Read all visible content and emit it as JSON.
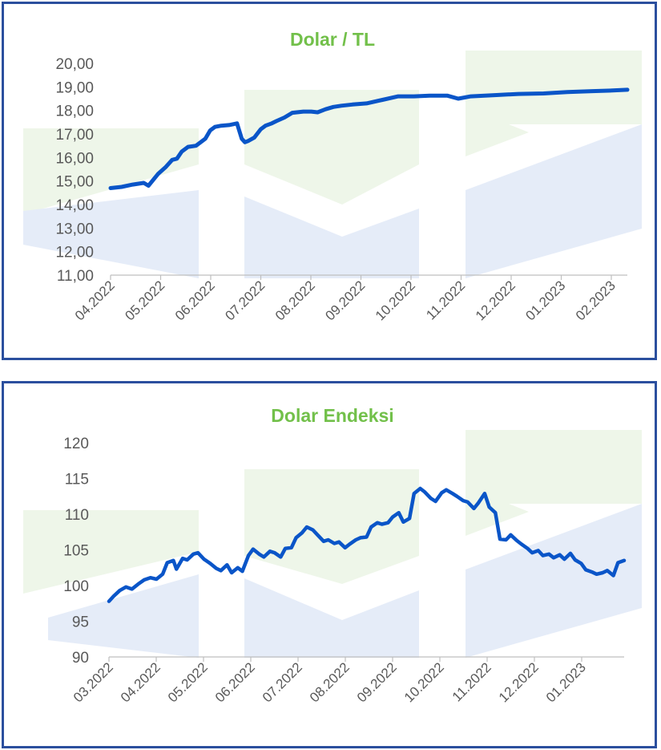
{
  "colors": {
    "frame": "#2b4f9e",
    "title": "#72c04a",
    "series": "#0a55c8",
    "watermark_green": "#eef6e9",
    "watermark_blue": "#e5ecf8"
  },
  "chart_data": [
    {
      "type": "line",
      "title": "Dolar / TL",
      "xlabel": "",
      "ylabel": "",
      "x_tick_labels": [
        "04.2022",
        "05.2022",
        "06.2022",
        "07.2022",
        "08.2022",
        "09.2022",
        "10.2022",
        "11.2022",
        "12.2022",
        "01.2023",
        "02.2023"
      ],
      "y_tick_labels": [
        "11,00",
        "12,00",
        "13,00",
        "14,00",
        "15,00",
        "16,00",
        "17,00",
        "18,00",
        "19,00",
        "20,00"
      ],
      "ylim": [
        11,
        20
      ],
      "xlim": [
        "2022-04-01",
        "2023-02-22"
      ],
      "grid": false,
      "legend": "none",
      "series": [
        {
          "x": [
            "2022-04-01",
            "2022-04-08",
            "2022-04-15",
            "2022-04-22",
            "2022-04-25",
            "2022-05-01",
            "2022-05-06",
            "2022-05-10",
            "2022-05-13",
            "2022-05-16",
            "2022-05-20",
            "2022-05-25",
            "2022-05-31",
            "2022-06-03",
            "2022-06-06",
            "2022-06-10",
            "2022-06-15",
            "2022-06-20",
            "2022-06-23",
            "2022-06-25",
            "2022-06-27",
            "2022-07-01",
            "2022-07-05",
            "2022-07-08",
            "2022-07-12",
            "2022-07-15",
            "2022-07-20",
            "2022-07-25",
            "2022-08-01",
            "2022-08-06",
            "2022-08-10",
            "2022-08-15",
            "2022-08-20",
            "2022-08-25",
            "2022-09-01",
            "2022-09-10",
            "2022-09-20",
            "2022-09-30",
            "2022-10-10",
            "2022-10-20",
            "2022-10-31",
            "2022-11-07",
            "2022-11-15",
            "2022-11-30",
            "2022-12-15",
            "2022-12-31",
            "2023-01-15",
            "2023-01-31",
            "2023-02-10",
            "2023-02-22"
          ],
          "y": [
            14.7,
            14.75,
            14.85,
            14.92,
            14.8,
            15.3,
            15.6,
            15.9,
            15.95,
            16.25,
            16.45,
            16.5,
            16.8,
            17.15,
            17.3,
            17.35,
            17.38,
            17.45,
            16.8,
            16.65,
            16.7,
            16.85,
            17.2,
            17.35,
            17.45,
            17.55,
            17.7,
            17.9,
            17.95,
            17.95,
            17.92,
            18.05,
            18.15,
            18.2,
            18.25,
            18.3,
            18.45,
            18.6,
            18.6,
            18.63,
            18.63,
            18.5,
            18.6,
            18.65,
            18.7,
            18.72,
            18.78,
            18.82,
            18.84,
            18.88
          ]
        }
      ]
    },
    {
      "type": "line",
      "title": "Dolar Endeksi",
      "xlabel": "",
      "ylabel": "",
      "x_tick_labels": [
        "03.2022",
        "04.2022",
        "05.2022",
        "06.2022",
        "07.2022",
        "08.2022",
        "09.2022",
        "10.2022",
        "11.2022",
        "12.2022",
        "01.2023"
      ],
      "y_tick_labels": [
        "90",
        "95",
        "100",
        "105",
        "110",
        "115",
        "120"
      ],
      "ylim": [
        90,
        120
      ],
      "xlim": [
        "2022-03-01",
        "2023-01-31"
      ],
      "grid": false,
      "legend": "none",
      "series": [
        {
          "x": [
            "2022-03-01",
            "2022-03-04",
            "2022-03-08",
            "2022-03-12",
            "2022-03-16",
            "2022-03-20",
            "2022-03-24",
            "2022-03-28",
            "2022-04-01",
            "2022-04-05",
            "2022-04-08",
            "2022-04-12",
            "2022-04-14",
            "2022-04-18",
            "2022-04-21",
            "2022-04-25",
            "2022-04-28",
            "2022-05-02",
            "2022-05-06",
            "2022-05-10",
            "2022-05-13",
            "2022-05-17",
            "2022-05-20",
            "2022-05-24",
            "2022-05-27",
            "2022-05-31",
            "2022-06-03",
            "2022-06-07",
            "2022-06-10",
            "2022-06-14",
            "2022-06-17",
            "2022-06-21",
            "2022-06-24",
            "2022-06-28",
            "2022-07-01",
            "2022-07-05",
            "2022-07-08",
            "2022-07-12",
            "2022-07-15",
            "2022-07-19",
            "2022-07-22",
            "2022-07-26",
            "2022-07-29",
            "2022-08-02",
            "2022-08-05",
            "2022-08-09",
            "2022-08-12",
            "2022-08-16",
            "2022-08-19",
            "2022-08-23",
            "2022-08-26",
            "2022-08-30",
            "2022-09-02",
            "2022-09-06",
            "2022-09-09",
            "2022-09-13",
            "2022-09-16",
            "2022-09-20",
            "2022-09-23",
            "2022-09-27",
            "2022-09-30",
            "2022-10-04",
            "2022-10-07",
            "2022-10-11",
            "2022-10-14",
            "2022-10-18",
            "2022-10-21",
            "2022-10-25",
            "2022-10-28",
            "2022-11-01",
            "2022-11-04",
            "2022-11-08",
            "2022-11-11",
            "2022-11-15",
            "2022-11-18",
            "2022-11-22",
            "2022-11-25",
            "2022-11-29",
            "2022-12-02",
            "2022-12-06",
            "2022-12-09",
            "2022-12-13",
            "2022-12-16",
            "2022-12-20",
            "2022-12-23",
            "2022-12-27",
            "2022-12-30",
            "2023-01-03",
            "2023-01-06",
            "2023-01-10",
            "2023-01-13",
            "2023-01-17",
            "2023-01-20",
            "2023-01-24",
            "2023-01-27",
            "2023-01-31"
          ],
          "y": [
            97.8,
            98.5,
            99.3,
            99.8,
            99.5,
            100.2,
            100.8,
            101.1,
            100.9,
            101.6,
            103.2,
            103.5,
            102.3,
            103.8,
            103.6,
            104.4,
            104.6,
            103.7,
            103.1,
            102.4,
            102.1,
            102.9,
            101.8,
            102.5,
            102.0,
            104.2,
            105.1,
            104.4,
            104.0,
            104.8,
            104.6,
            104.0,
            105.2,
            105.3,
            106.7,
            107.4,
            108.2,
            107.8,
            107.1,
            106.2,
            106.4,
            105.9,
            106.1,
            105.3,
            105.8,
            106.4,
            106.7,
            106.8,
            108.2,
            108.8,
            108.6,
            108.8,
            109.6,
            110.2,
            108.9,
            109.4,
            112.9,
            113.6,
            113.1,
            112.2,
            111.8,
            113.0,
            113.4,
            112.9,
            112.5,
            111.9,
            111.7,
            110.8,
            111.6,
            112.9,
            111.0,
            110.2,
            106.5,
            106.4,
            107.1,
            106.3,
            105.8,
            105.2,
            104.6,
            104.9,
            104.2,
            104.4,
            103.9,
            104.3,
            103.7,
            104.5,
            103.6,
            103.1,
            102.2,
            101.9,
            101.6,
            101.8,
            102.1,
            101.4,
            103.2,
            103.5
          ]
        }
      ]
    }
  ]
}
